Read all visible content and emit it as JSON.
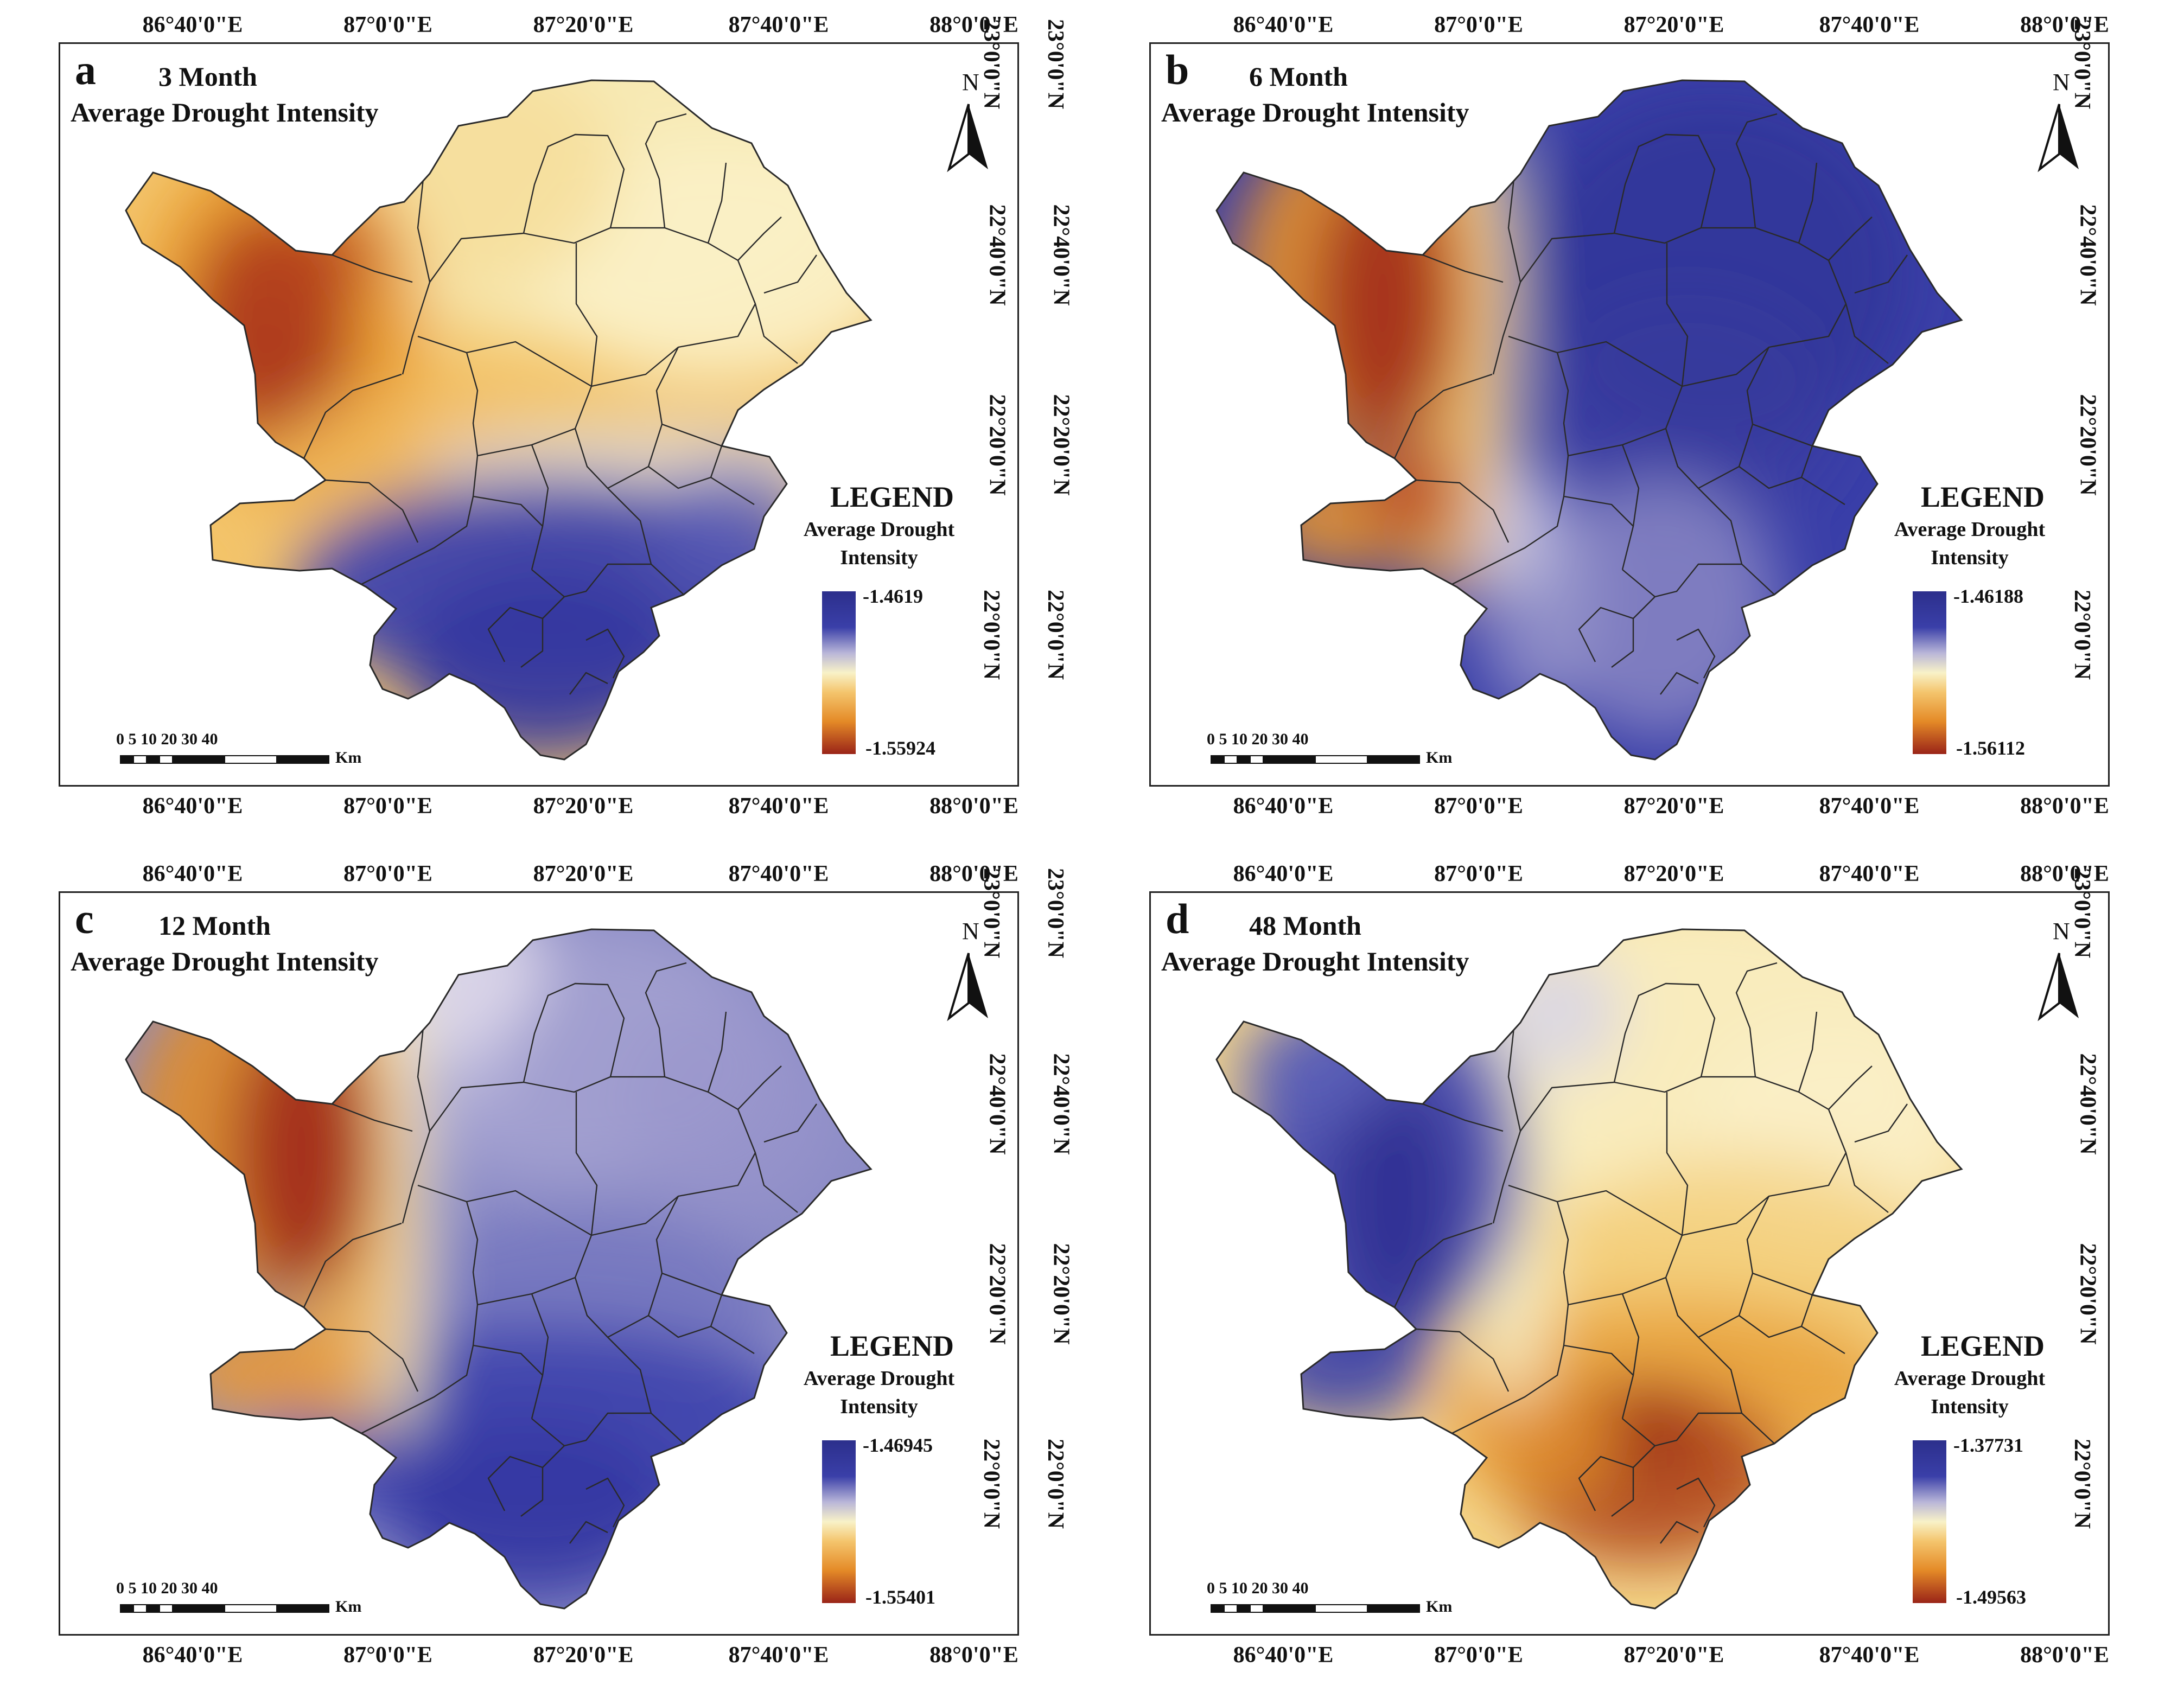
{
  "colors": {
    "dark_blue": "#2c2f8c",
    "blue": "#3a3fa8",
    "lavender": "#b9b6d8",
    "cream": "#f8f2c8",
    "light_orange": "#f4c56d",
    "orange": "#e48a27",
    "dark_red": "#9a2418"
  },
  "axes": {
    "lon_ticks": [
      "86°40'0\"E",
      "87°0'0\"E",
      "87°20'0\"E",
      "87°40'0\"E",
      "88°0'0\"E"
    ],
    "lat_ticks": [
      "23°0'0\"N",
      "22°40'0\"N",
      "22°20'0\"N",
      "22°0'0\"N"
    ]
  },
  "north_arrow": {
    "label": "N",
    "icon": "north-arrow-icon"
  },
  "scale_bar": {
    "numbers": "0  5  10     20     30     40",
    "unit": "Km"
  },
  "legend": {
    "title": "LEGEND",
    "subtitle_line1": "Average Drought",
    "subtitle_line2": "Intensity"
  },
  "panels": [
    {
      "letter": "a",
      "period": "3 Month",
      "subtitle": "Average Drought Intensity",
      "legend_max": "-1.4619",
      "legend_min": "-1.55924",
      "pattern": "south_blue"
    },
    {
      "letter": "b",
      "period": "6 Month",
      "subtitle": "Average Drought Intensity",
      "legend_max": "-1.46188",
      "legend_min": "-1.56112",
      "pattern": "east_blue"
    },
    {
      "letter": "c",
      "period": "12 Month",
      "subtitle": "Average Drought Intensity",
      "legend_max": "-1.46945",
      "legend_min": "-1.55401",
      "pattern": "east_lavender"
    },
    {
      "letter": "d",
      "period": "48 Month",
      "subtitle": "Average Drought Intensity",
      "legend_max": "-1.37731",
      "legend_min": "-1.49563",
      "pattern": "west_blue_south_red"
    }
  ]
}
